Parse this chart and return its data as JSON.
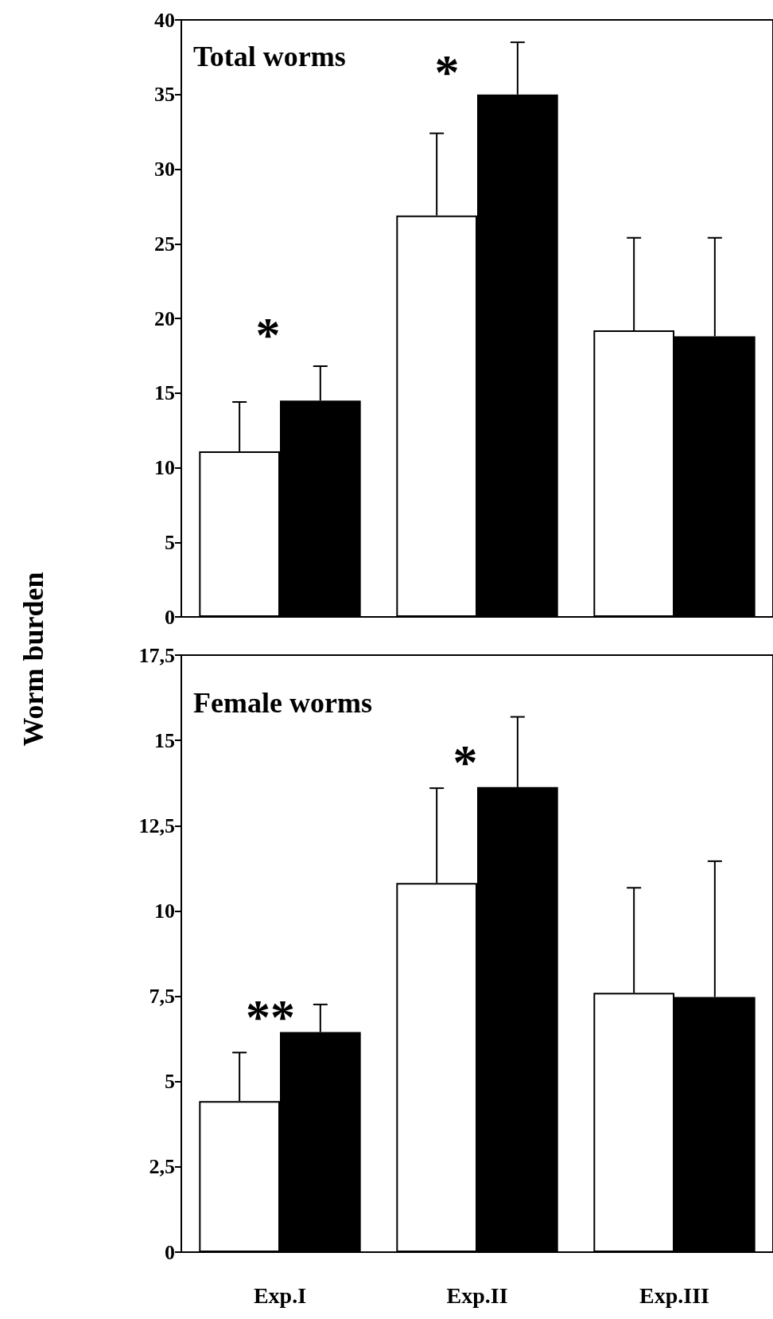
{
  "chart_data": [
    {
      "type": "bar",
      "title": "Total worms",
      "ylabel": "Worm burden",
      "categories": [
        null,
        null,
        null
      ],
      "tick_labels": "y",
      "series": [
        {
          "color": "#ffffff",
          "values": [
            11.1,
            26.9,
            19.2
          ],
          "errors": [
            [
              11.1,
              14.4
            ],
            [
              26.9,
              32.4
            ],
            [
              19.2,
              25.4
            ]
          ]
        },
        {
          "color": "#000000",
          "values": [
            14.5,
            35.0,
            18.8
          ],
          "errors": [
            [
              14.5,
              16.8
            ],
            [
              35.0,
              38.5
            ],
            [
              18.8,
              25.4
            ]
          ]
        }
      ],
      "ylim": [
        0,
        40
      ],
      "yticks": [
        0,
        5,
        10,
        15,
        20,
        25,
        30,
        35,
        40
      ],
      "annotations": [
        "*",
        "*"
      ]
    },
    {
      "type": "bar",
      "title": "Female worms",
      "categories": [
        "Exp.I",
        "Exp.II",
        "Exp.III"
      ],
      "series": [
        {
          "color": "#ffffff",
          "values": [
            4.43,
            10.82,
            7.6
          ],
          "errors": [
            [
              4.43,
              5.85
            ],
            [
              10.82,
              13.6
            ],
            [
              7.6,
              10.68
            ]
          ]
        },
        {
          "color": "#000000",
          "values": [
            6.45,
            13.63,
            7.48
          ],
          "errors": [
            [
              6.45,
              7.26
            ],
            [
              13.63,
              15.69
            ],
            [
              7.48,
              11.46
            ]
          ]
        }
      ],
      "ylim": [
        0,
        17.5
      ],
      "yticks": [
        0,
        {
          "value": 2.5,
          "label": "2,5"
        },
        5,
        {
          "value": 7.5,
          "label": "7,5"
        },
        10,
        {
          "value": 12.5,
          "label": "12,5"
        },
        15,
        {
          "value": 17.5,
          "label": "17,5"
        }
      ],
      "annotations": [
        "**",
        "*"
      ]
    }
  ]
}
